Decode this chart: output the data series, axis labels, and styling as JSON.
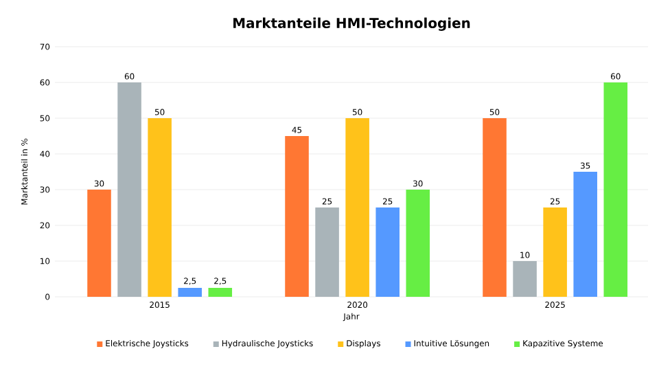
{
  "chart_data": {
    "type": "bar",
    "title": "Marktanteile HMI-Technologien",
    "xlabel": "Jahr",
    "ylabel": "Marktanteil in %",
    "categories": [
      "2015",
      "2020",
      "2025"
    ],
    "ylim": [
      0,
      70
    ],
    "yticks": [
      0,
      10,
      20,
      30,
      40,
      50,
      60,
      70
    ],
    "grid": "y",
    "legend": "bottom",
    "series": [
      {
        "name": "Elektrische Joysticks",
        "color": "#ff7733",
        "values": [
          30,
          45,
          50
        ],
        "value_labels": [
          "30",
          "45",
          "50"
        ]
      },
      {
        "name": "Hydraulische Joysticks",
        "color": "#a9b4b9",
        "values": [
          60,
          25,
          10
        ],
        "value_labels": [
          "60",
          "25",
          "10"
        ]
      },
      {
        "name": "Displays",
        "color": "#ffc21a",
        "values": [
          50,
          50,
          25
        ],
        "value_labels": [
          "50",
          "50",
          "25"
        ]
      },
      {
        "name": "Intuitive Lösungen",
        "color": "#5599ff",
        "values": [
          2.5,
          25,
          35
        ],
        "value_labels": [
          "2,5",
          "25",
          "35"
        ]
      },
      {
        "name": "Kapazitive Systeme",
        "color": "#66ee44",
        "values": [
          2.5,
          30,
          60
        ],
        "value_labels": [
          "2,5",
          "30",
          "60"
        ]
      }
    ]
  }
}
